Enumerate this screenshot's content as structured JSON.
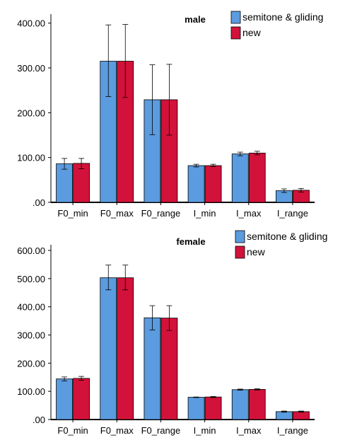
{
  "chart_data": [
    {
      "type": "bar",
      "title": "male",
      "categories": [
        "F0_min",
        "F0_max",
        "F0_range",
        "I_min",
        "I_max",
        "I_range"
      ],
      "series": [
        {
          "name": "semitone & gliding",
          "color": "#5b9bdf",
          "values": [
            86,
            315,
            229,
            82,
            108,
            26
          ],
          "error": [
            [
              74,
              98
            ],
            [
              236,
              396
            ],
            [
              151,
              307
            ],
            [
              79,
              85
            ],
            [
              104,
              112
            ],
            [
              22,
              30
            ]
          ]
        },
        {
          "name": "new",
          "color": "#d2123a",
          "values": [
            87,
            315,
            229,
            82,
            110,
            27
          ],
          "error": [
            [
              75,
              98
            ],
            [
              234,
              397
            ],
            [
              150,
              308
            ],
            [
              80,
              85
            ],
            [
              106,
              114
            ],
            [
              23,
              31
            ]
          ]
        }
      ],
      "ylim": [
        0,
        420
      ],
      "yticks": [
        ".00",
        "100.00",
        "200.00",
        "300.00",
        "400.00"
      ],
      "xlabel": "",
      "ylabel": "",
      "legend": "top-right",
      "grid": false
    },
    {
      "type": "bar",
      "title": "female",
      "categories": [
        "F0_min",
        "F0_max",
        "F0_range",
        "I_min",
        "I_max",
        "I_range"
      ],
      "series": [
        {
          "name": "semitone & gliding",
          "color": "#5b9bdf",
          "values": [
            144,
            503,
            361,
            79,
            106,
            28
          ],
          "error": [
            [
              137,
              151
            ],
            [
              460,
              548
            ],
            [
              318,
              404
            ],
            [
              78,
              80
            ],
            [
              104,
              108
            ],
            [
              26,
              30
            ]
          ]
        },
        {
          "name": "new",
          "color": "#d2123a",
          "values": [
            146,
            503,
            360,
            80,
            107,
            28
          ],
          "error": [
            [
              139,
              153
            ],
            [
              460,
              548
            ],
            [
              316,
              404
            ],
            [
              78,
              82
            ],
            [
              105,
              109
            ],
            [
              26,
              30
            ]
          ]
        }
      ],
      "ylim": [
        0,
        620
      ],
      "yticks": [
        ".00",
        "100.00",
        "200.00",
        "300.00",
        "400.00",
        "500.00",
        "600.00"
      ],
      "xlabel": "",
      "ylabel": "",
      "legend": "top-right",
      "grid": false
    }
  ]
}
